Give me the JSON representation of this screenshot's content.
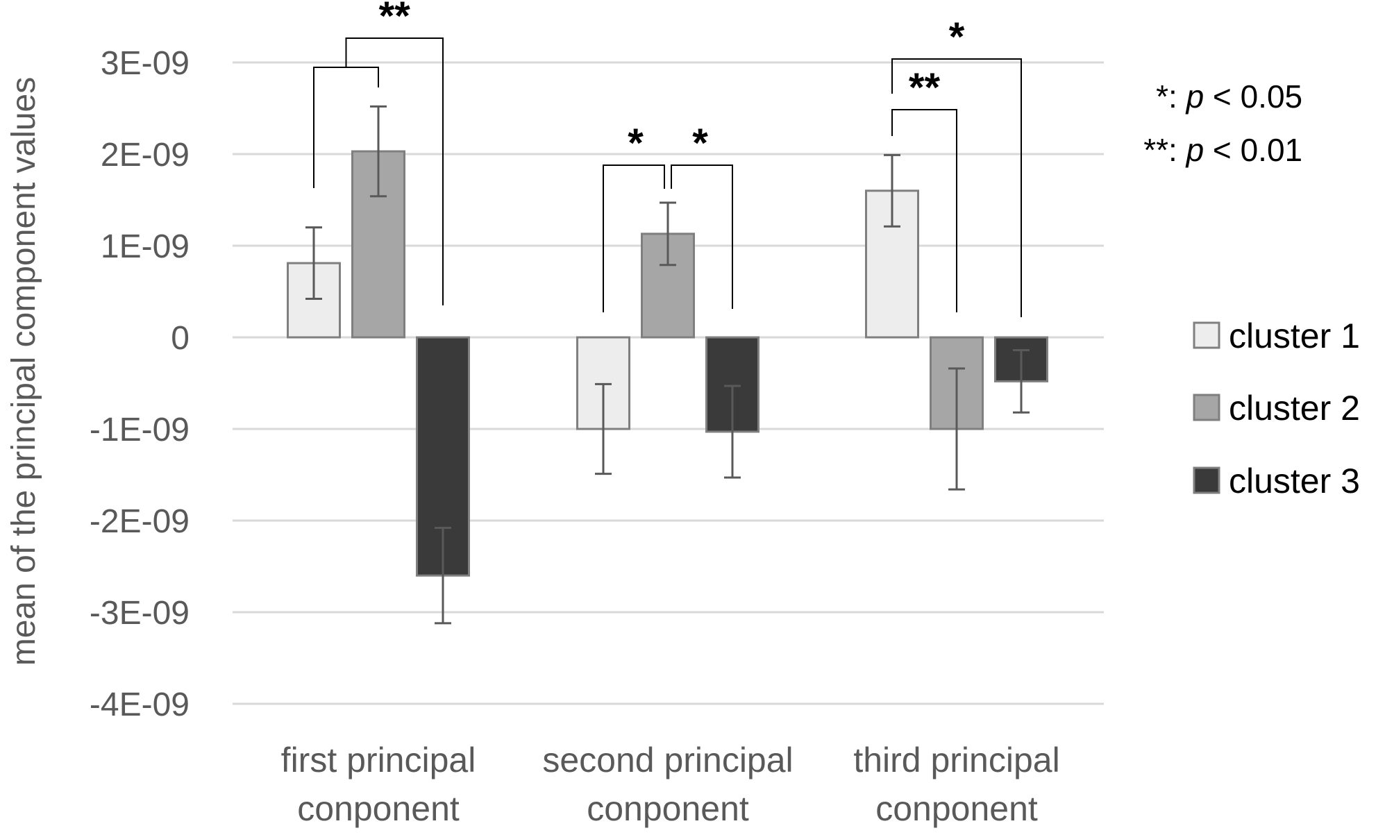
{
  "chart_data": {
    "type": "bar",
    "title": "",
    "xlabel": "",
    "ylabel": "mean of the principal component values",
    "ylim": [
      -4e-09,
      3e-09
    ],
    "yticks": [
      3e-09,
      2e-09,
      1e-09,
      0,
      -1e-09,
      -2e-09,
      -3e-09,
      -4e-09
    ],
    "ytick_labels": [
      "3E-09",
      "2E-09",
      "1E-09",
      "0",
      "-1E-09",
      "-2E-09",
      "-3E-09",
      "-4E-09"
    ],
    "grid": true,
    "legend_position": "right",
    "categories": [
      [
        "first principal",
        "conponent"
      ],
      [
        "second principal",
        "conponent"
      ],
      [
        "third principal",
        "conponent"
      ]
    ],
    "series": [
      {
        "name": "cluster 1",
        "color": "#ededed",
        "values": [
          8.1e-10,
          -1e-09,
          1.6e-09
        ],
        "errors": [
          3.9e-10,
          4.9e-10,
          3.9e-10
        ]
      },
      {
        "name": "cluster 2",
        "color": "#a6a6a6",
        "values": [
          2.03e-09,
          1.13e-09,
          -1e-09
        ],
        "errors": [
          4.9e-10,
          3.4e-10,
          6.6e-10
        ]
      },
      {
        "name": "cluster 3",
        "color": "#3a3a3a",
        "values": [
          -2.6e-09,
          -1.03e-09,
          -4.8e-10
        ],
        "errors": [
          5.2e-10,
          5e-10,
          3.4e-10
        ]
      }
    ],
    "significance": [
      {
        "group": 0,
        "series": [
          0,
          2
        ],
        "label": "**"
      },
      {
        "group": 1,
        "series": [
          0,
          1
        ],
        "label": "*"
      },
      {
        "group": 1,
        "series": [
          1,
          2
        ],
        "label": "*"
      },
      {
        "group": 2,
        "series": [
          0,
          1
        ],
        "label": "**"
      },
      {
        "group": 2,
        "series": [
          0,
          2
        ],
        "label": "*"
      }
    ],
    "significance_legend": [
      {
        "stars": "*",
        "text": " : ",
        "p": "p",
        "rest": " < 0.05"
      },
      {
        "stars": "**",
        "text": " : ",
        "p": "p",
        "rest": " < 0.01"
      }
    ]
  }
}
